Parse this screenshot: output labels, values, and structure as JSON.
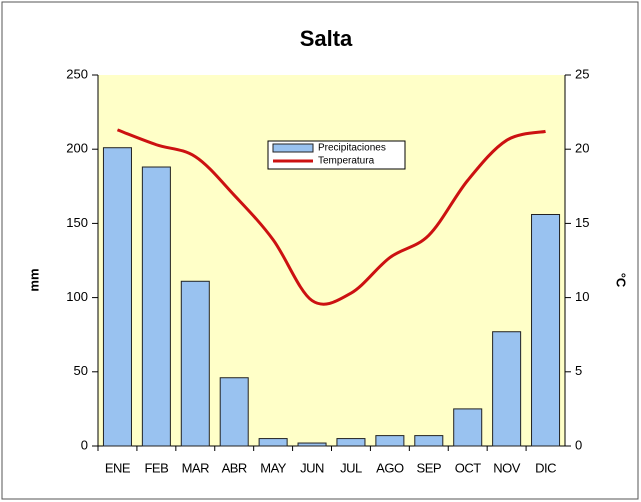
{
  "chart_data": {
    "type": "bar_line",
    "title": "Salta",
    "categories": [
      "ENE",
      "FEB",
      "MAR",
      "ABR",
      "MAY",
      "JUN",
      "JUL",
      "AGO",
      "SEP",
      "OCT",
      "NOV",
      "DIC"
    ],
    "series": [
      {
        "name": "Precipitaciones",
        "type": "bar",
        "color": "#99c2f0",
        "values": [
          201,
          188,
          111,
          46,
          5,
          2,
          5,
          7,
          7,
          25,
          77,
          156
        ]
      },
      {
        "name": "Temperatura",
        "type": "line",
        "axis": "y2",
        "color": "#cc1111",
        "values": [
          21.3,
          20.3,
          19.5,
          16.9,
          13.9,
          9.8,
          10.3,
          12.7,
          14.2,
          17.9,
          20.6,
          21.2
        ]
      }
    ],
    "ylabel": "mm",
    "y2label": "°C",
    "ylim": [
      0,
      250
    ],
    "yticks": [
      0,
      50,
      100,
      150,
      200,
      250
    ],
    "y2lim": [
      0,
      25
    ],
    "y2ticks": [
      0,
      5,
      10,
      15,
      20,
      25
    ],
    "legend": "top"
  }
}
